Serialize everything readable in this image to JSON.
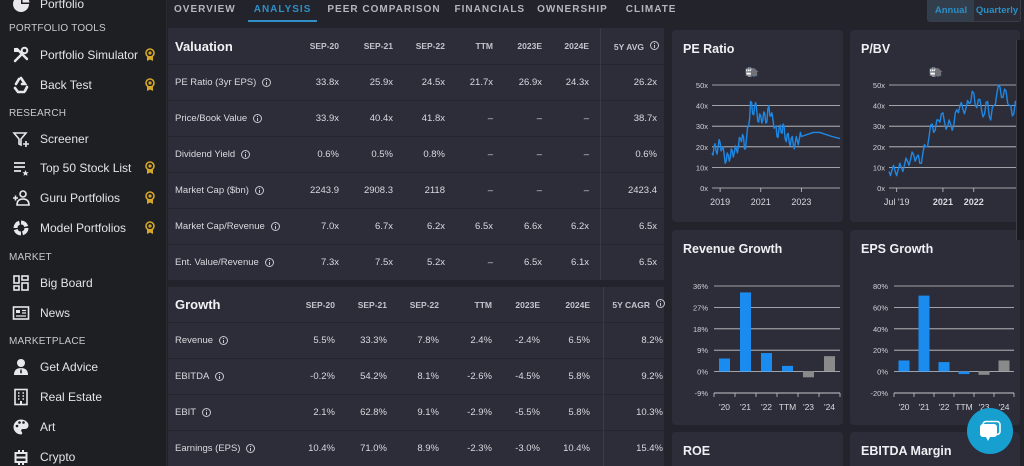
{
  "sidebar": {
    "top_item": {
      "label": "Portfolio",
      "icon": "pie-chart-icon"
    },
    "sections": [
      {
        "title": "PORTFOLIO TOOLS",
        "items": [
          {
            "label": "Portfolio Simulator",
            "icon": "tools-icon",
            "premium": true
          },
          {
            "label": "Back Test",
            "icon": "recycle-icon",
            "premium": true
          }
        ]
      },
      {
        "title": "RESEARCH",
        "items": [
          {
            "label": "Screener",
            "icon": "filter-plus-icon",
            "premium": false
          },
          {
            "label": "Top 50 Stock List",
            "icon": "list-star-icon",
            "premium": true
          },
          {
            "label": "Guru Portfolios",
            "icon": "person-add-icon",
            "premium": true
          },
          {
            "label": "Model Portfolios",
            "icon": "donut-icon",
            "premium": true
          }
        ]
      },
      {
        "title": "MARKET",
        "items": [
          {
            "label": "Big Board",
            "icon": "dashboard-icon",
            "premium": false
          },
          {
            "label": "News",
            "icon": "newspaper-icon",
            "premium": false
          }
        ]
      },
      {
        "title": "MARKETPLACE",
        "items": [
          {
            "label": "Get Advice",
            "icon": "advisor-icon",
            "premium": false
          },
          {
            "label": "Real Estate",
            "icon": "building-icon",
            "premium": false
          },
          {
            "label": "Art",
            "icon": "palette-icon",
            "premium": false
          },
          {
            "label": "Crypto",
            "icon": "bitcoin-icon",
            "premium": false
          }
        ]
      }
    ]
  },
  "tabs": [
    {
      "label": "OVERVIEW",
      "active": false
    },
    {
      "label": "ANALYSIS",
      "active": true
    },
    {
      "label": "PEER COMPARISON",
      "active": false
    },
    {
      "label": "FINANCIALS",
      "active": false
    },
    {
      "label": "OWNERSHIP",
      "active": false
    },
    {
      "label": "CLIMATE",
      "active": false
    }
  ],
  "period_toggle": {
    "annual": "Annual",
    "quarterly": "Quarterly",
    "selected": "Annual"
  },
  "valuation": {
    "title": "Valuation",
    "columns": [
      "SEP-20",
      "SEP-21",
      "SEP-22",
      "TTM",
      "2023E",
      "2024E",
      "5Y AVG"
    ],
    "rows": [
      {
        "label": "PE Ratio (3yr EPS)",
        "values": [
          "33.8x",
          "25.9x",
          "24.5x",
          "21.7x",
          "26.9x",
          "24.3x",
          "26.2x"
        ]
      },
      {
        "label": "Price/Book Value",
        "values": [
          "33.9x",
          "40.4x",
          "41.8x",
          "–",
          "–",
          "–",
          "38.7x"
        ]
      },
      {
        "label": "Dividend Yield",
        "values": [
          "0.6%",
          "0.5%",
          "0.8%",
          "–",
          "–",
          "–",
          "0.6%"
        ]
      },
      {
        "label": "Market Cap ($bn)",
        "values": [
          "2243.9",
          "2908.3",
          "2118",
          "–",
          "–",
          "–",
          "2423.4"
        ]
      },
      {
        "label": "Market Cap/Revenue",
        "values": [
          "7.0x",
          "6.7x",
          "6.2x",
          "6.5x",
          "6.6x",
          "6.2x",
          "6.5x"
        ]
      },
      {
        "label": "Ent. Value/Revenue",
        "values": [
          "7.3x",
          "7.5x",
          "5.2x",
          "–",
          "6.5x",
          "6.1x",
          "6.5x"
        ]
      }
    ]
  },
  "growth": {
    "title": "Growth",
    "columns": [
      "SEP-20",
      "SEP-21",
      "SEP-22",
      "TTM",
      "2023E",
      "2024E",
      "5Y CAGR"
    ],
    "rows": [
      {
        "label": "Revenue",
        "values": [
          "5.5%",
          "33.3%",
          "7.8%",
          "2.4%",
          "-2.4%",
          "6.5%",
          "8.2%"
        ]
      },
      {
        "label": "EBITDA",
        "values": [
          "-0.2%",
          "54.2%",
          "8.1%",
          "-2.6%",
          "-4.5%",
          "5.8%",
          "9.2%"
        ]
      },
      {
        "label": "EBIT",
        "values": [
          "2.1%",
          "62.8%",
          "9.1%",
          "-2.9%",
          "-5.5%",
          "5.8%",
          "10.3%"
        ]
      },
      {
        "label": "Earnings (EPS)",
        "values": [
          "10.4%",
          "71.0%",
          "8.9%",
          "-2.3%",
          "-3.0%",
          "10.4%",
          "15.4%"
        ]
      }
    ]
  },
  "colors": {
    "accent": "#2f8fc6",
    "series": "#1e88e5",
    "bar_actual": "#1a8cf0",
    "bar_estimate": "#8a8a8a",
    "chat": "#169fcf"
  },
  "chart_tools": [
    "zoom-in-icon",
    "zoom-out-icon",
    "magnify-icon",
    "pan-hand-icon",
    "home-icon",
    "menu-icon"
  ],
  "chart_data": [
    {
      "type": "line",
      "title": "PE Ratio",
      "yticks": [
        "0x",
        "10x",
        "20x",
        "30x",
        "40x",
        "50x"
      ],
      "ylim": [
        0,
        50
      ],
      "xticks": [
        "2019",
        "2021",
        "2023"
      ],
      "xtick_years": [
        2019,
        2021,
        2023
      ],
      "xlim": [
        2018.6,
        2024.9
      ],
      "series": [
        {
          "name": "PE Ratio",
          "x": [
            2018.6,
            2018.7,
            2018.8,
            2018.9,
            2019.0,
            2019.1,
            2019.2,
            2019.3,
            2019.4,
            2019.5,
            2019.6,
            2019.7,
            2019.8,
            2019.9,
            2020.0,
            2020.1,
            2020.2,
            2020.3,
            2020.4,
            2020.5,
            2020.6,
            2020.7,
            2020.8,
            2020.9,
            2021.0,
            2021.1,
            2021.2,
            2021.3,
            2021.4,
            2021.5,
            2021.6,
            2021.7,
            2021.8,
            2021.9,
            2022.0,
            2022.1,
            2022.2,
            2022.3,
            2022.4,
            2022.5,
            2022.6,
            2022.7,
            2022.8,
            2022.9,
            2023.0,
            2023.3,
            2023.6,
            2023.9,
            2024.2,
            2024.5,
            2024.9
          ],
          "y": [
            17,
            20,
            18,
            20,
            22,
            19,
            16,
            13,
            16,
            15,
            18,
            17,
            19,
            20,
            24,
            26,
            19,
            24,
            30,
            42,
            36,
            40,
            38,
            32,
            35,
            33,
            36,
            32,
            40,
            35,
            33,
            30,
            25,
            29,
            27,
            31,
            24,
            26,
            22,
            24,
            21,
            22,
            23,
            24,
            25,
            26,
            27,
            27,
            26,
            25,
            24
          ]
        }
      ]
    },
    {
      "type": "line",
      "title": "P/BV",
      "yticks": [
        "0x",
        "10x",
        "20x",
        "30x",
        "40x",
        "50x"
      ],
      "ylim": [
        0,
        50
      ],
      "xticks": [
        "Jul '19",
        "2021",
        "2022"
      ],
      "xtick_years": [
        2019.5,
        2021.0,
        2022.0
      ],
      "xlim": [
        2019.25,
        2023.5
      ],
      "series": [
        {
          "name": "P/BV",
          "x": [
            2019.25,
            2019.35,
            2019.45,
            2019.55,
            2019.65,
            2019.75,
            2019.85,
            2019.95,
            2020.05,
            2020.15,
            2020.25,
            2020.35,
            2020.45,
            2020.55,
            2020.65,
            2020.75,
            2020.85,
            2020.95,
            2021.05,
            2021.15,
            2021.25,
            2021.35,
            2021.45,
            2021.55,
            2021.65,
            2021.75,
            2021.85,
            2021.95,
            2022.05,
            2022.15,
            2022.25,
            2022.35,
            2022.45,
            2022.55,
            2022.65,
            2022.75,
            2022.85,
            2022.95,
            2023.05,
            2023.15,
            2023.25,
            2023.35,
            2023.5
          ],
          "y": [
            8,
            9,
            8,
            9,
            10,
            11,
            13,
            14,
            16,
            15,
            12,
            17,
            20,
            25,
            31,
            28,
            33,
            36,
            32,
            30,
            31,
            30,
            38,
            40,
            38,
            39,
            41,
            47,
            40,
            43,
            38,
            36,
            42,
            33,
            40,
            46,
            49,
            44,
            47,
            40,
            35,
            42,
            43
          ]
        }
      ]
    },
    {
      "type": "bar",
      "title": "Revenue Growth",
      "categories": [
        "'20",
        "'21",
        "'22",
        "TTM",
        "'23",
        "'24"
      ],
      "values": [
        5.5,
        33.3,
        7.8,
        2.4,
        -2.4,
        6.5
      ],
      "estimate": [
        false,
        false,
        false,
        false,
        true,
        true
      ],
      "yticks": [
        "-9%",
        "0%",
        "9%",
        "18%",
        "27%",
        "36%"
      ],
      "ylim": [
        -9,
        36
      ]
    },
    {
      "type": "bar",
      "title": "EPS Growth",
      "categories": [
        "'20",
        "'21",
        "'22",
        "TTM",
        "'23",
        "'24"
      ],
      "values": [
        10.4,
        71.0,
        8.9,
        -2.3,
        -3.0,
        10.4
      ],
      "estimate": [
        false,
        false,
        false,
        false,
        true,
        true
      ],
      "yticks": [
        "-20%",
        "0%",
        "20%",
        "40%",
        "60%",
        "80%"
      ],
      "ylim": [
        -20,
        80
      ]
    }
  ],
  "more_panels": [
    "ROE",
    "EBITDA Margin"
  ]
}
